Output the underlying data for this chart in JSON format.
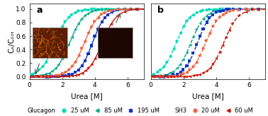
{
  "title_a": "a",
  "title_b": "b",
  "xlabel": "Urea [M]",
  "ylabel": "Cₛ/Cₜₒₜ",
  "xlim": [
    0,
    7
  ],
  "ylim": [
    -0.03,
    1.08
  ],
  "xticks": [
    0,
    2,
    4,
    6
  ],
  "yticks": [
    0.0,
    0.2,
    0.4,
    0.6,
    0.8,
    1.0
  ],
  "background": "#ffffff",
  "legend_fontsize": 6.0,
  "tick_fontsize": 6.5,
  "label_fontsize": 7.5,
  "panel_label_fontsize": 9,
  "panel_a": {
    "series": [
      {
        "mid": 1.55,
        "slope": 2.3,
        "color": "#00ddbb",
        "marker": "o",
        "ls": "-",
        "ms": 9
      },
      {
        "mid": 2.45,
        "slope": 2.3,
        "color": "#00aa88",
        "marker": "^",
        "ls": "-",
        "ms": 9
      },
      {
        "mid": 3.85,
        "slope": 2.5,
        "color": "#1133cc",
        "marker": "s",
        "ls": "-",
        "ms": 9
      },
      {
        "mid": 3.35,
        "slope": 2.3,
        "color": "#ee6644",
        "marker": "o",
        "ls": "-",
        "ms": 9
      },
      {
        "mid": 4.45,
        "slope": 2.3,
        "color": "#cc1100",
        "marker": "^",
        "ls": "-",
        "ms": 9
      }
    ]
  },
  "panel_b": {
    "series": [
      {
        "mid": 1.55,
        "slope": 2.3,
        "color": "#00ddbb",
        "marker": "o",
        "ls": "--",
        "ms": 9
      },
      {
        "mid": 2.45,
        "slope": 2.3,
        "color": "#00aa88",
        "marker": "^",
        "ls": "--",
        "ms": 9
      },
      {
        "mid": 2.85,
        "slope": 2.5,
        "color": "#1133cc",
        "marker": "s",
        "ls": "--",
        "ms": 9
      },
      {
        "mid": 3.35,
        "slope": 2.3,
        "color": "#ee6644",
        "marker": "o",
        "ls": "--",
        "ms": 9
      },
      {
        "mid": 4.45,
        "slope": 2.3,
        "color": "#cc1100",
        "marker": "^",
        "ls": "--",
        "ms": 9
      }
    ]
  }
}
